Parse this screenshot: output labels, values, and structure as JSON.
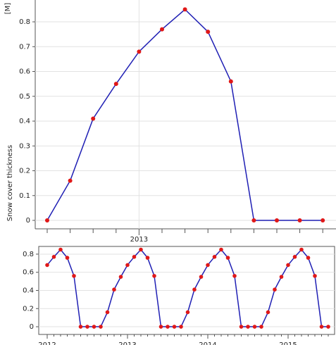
{
  "chart_data": [
    {
      "type": "line",
      "y_label": "Snow cover thickness",
      "y_unit": "[M]",
      "categories": [
        null,
        null,
        null,
        null,
        "2013",
        null,
        null,
        null,
        null,
        null,
        null,
        null,
        null
      ],
      "series": [
        {
          "color": "#1f1fb4",
          "marker_color": "#e01818",
          "values": [
            0,
            0.16,
            0.41,
            0.55,
            0.68,
            0.77,
            0.85,
            0.76,
            0.56,
            0,
            0,
            0,
            0
          ]
        }
      ],
      "ylim": [
        -0.034,
        0.888
      ],
      "yticks": [
        0,
        0.1,
        0.2,
        0.3,
        0.4,
        0.5,
        0.6,
        0.7,
        0.8
      ],
      "grid": true
    },
    {
      "type": "line",
      "categories": [
        "2012",
        null,
        null,
        null,
        null,
        null,
        null,
        null,
        null,
        null,
        null,
        null,
        "2013",
        null,
        null,
        null,
        null,
        null,
        null,
        null,
        null,
        null,
        null,
        null,
        "2014",
        null,
        null,
        null,
        null,
        null,
        null,
        null,
        null,
        null,
        null,
        null,
        "2015",
        null,
        null,
        null,
        null,
        null,
        null
      ],
      "series": [
        {
          "color": "#1f1fb4",
          "marker_color": "#e01818",
          "values": [
            0.68,
            0.77,
            0.85,
            0.76,
            0.56,
            0,
            0,
            0,
            0,
            0.16,
            0.41,
            0.55,
            0.68,
            0.77,
            0.85,
            0.76,
            0.56,
            0,
            0,
            0,
            0,
            0.16,
            0.41,
            0.55,
            0.68,
            0.77,
            0.85,
            0.76,
            0.56,
            0,
            0,
            0,
            0,
            0.16,
            0.41,
            0.55,
            0.68,
            0.77,
            0.85,
            0.76,
            0.56,
            0,
            0
          ]
        }
      ],
      "ylim": [
        -0.085,
        0.885
      ],
      "yticks": [
        0,
        0.2,
        0.4,
        0.6,
        0.8
      ],
      "grid": true
    }
  ]
}
